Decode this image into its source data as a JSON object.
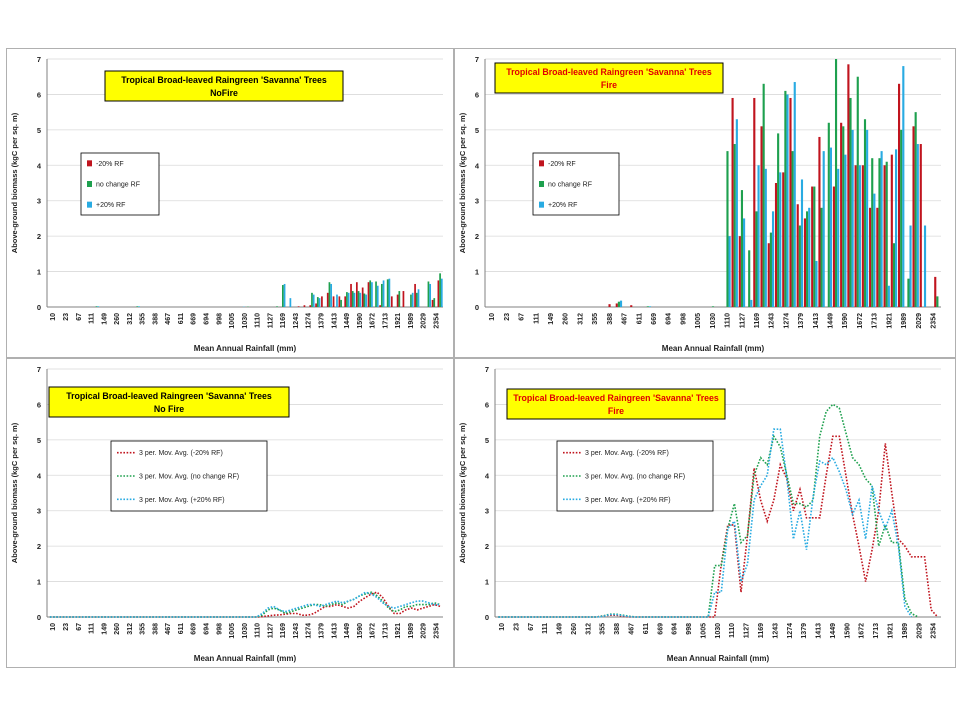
{
  "colors": {
    "low": "#c0141e",
    "mid": "#1ea04e",
    "high": "#29abe2",
    "title_box": "#ffff00",
    "fire_title": "#e00000",
    "axis": "#808080",
    "grid": "#d9d9d9"
  },
  "chart_data": [
    {
      "type": "bar",
      "title_line1": "Tropical Broad-leaved Raingreen 'Savanna' Trees",
      "title_line2": "NoFire",
      "title_color": "black",
      "xlabel": "Mean Annual Rainfall (mm)",
      "ylabel": "Above-ground biomass (kgC per sq. m)",
      "ylim": [
        0,
        7
      ],
      "yticks": [
        "0",
        "1",
        "2",
        "3",
        "4",
        "5",
        "6",
        "7"
      ],
      "tick_labels": [
        "10",
        "23",
        "67",
        "111",
        "149",
        "260",
        "312",
        "355",
        "388",
        "467",
        "611",
        "669",
        "694",
        "998",
        "1005",
        "1030",
        "1110",
        "1127",
        "1169",
        "1243",
        "1274",
        "1379",
        "1413",
        "1449",
        "1590",
        "1672",
        "1713",
        "1921",
        "1989",
        "2029",
        "2354"
      ],
      "legend": [
        "-20% RF",
        "no change RF",
        "+20% RF"
      ],
      "series": [
        {
          "name": "-20% RF",
          "values": [
            0,
            0,
            0,
            0,
            0,
            0,
            0,
            0,
            0,
            0,
            0,
            0,
            0,
            0,
            0,
            0,
            0,
            0,
            0,
            0,
            0,
            0,
            0,
            0,
            0,
            0,
            0,
            0,
            0,
            0,
            0,
            0,
            0,
            0,
            0,
            0,
            0,
            0,
            0,
            0,
            0,
            0,
            0,
            0.02,
            0.05,
            0.05,
            0.1,
            0.3,
            0.4,
            0.3,
            0.3,
            0.3,
            0.65,
            0.7,
            0.55,
            0.7,
            0,
            0.05,
            0,
            0.3,
            0.35,
            0.45,
            0,
            0.65,
            0,
            0,
            0.2,
            0.75
          ]
        },
        {
          "name": "no change RF",
          "values": [
            0,
            0,
            0,
            0,
            0,
            0,
            0,
            0,
            0.02,
            0,
            0,
            0,
            0,
            0,
            0,
            0.02,
            0,
            0,
            0,
            0,
            0,
            0,
            0,
            0,
            0,
            0,
            0,
            0,
            0,
            0,
            0,
            0,
            0,
            0,
            0.01,
            0,
            0,
            0,
            0,
            0.02,
            0.62,
            0,
            0,
            0,
            0,
            0.4,
            0.28,
            0,
            0.7,
            0,
            0.2,
            0.42,
            0.45,
            0.45,
            0.38,
            0.75,
            0.72,
            0.65,
            0.78,
            0,
            0.45,
            0,
            0.35,
            0.4,
            0,
            0.72,
            0.25,
            0.95
          ]
        },
        {
          "name": "+20% RF",
          "values": [
            0,
            0,
            0,
            0,
            0,
            0,
            0,
            0,
            0.02,
            0,
            0,
            0,
            0,
            0,
            0,
            0.02,
            0,
            0,
            0,
            0,
            0,
            0,
            0,
            0,
            0,
            0,
            0,
            0,
            0,
            0,
            0,
            0,
            0,
            0.01,
            0,
            0,
            0,
            0,
            0,
            0,
            0.65,
            0.25,
            0,
            0,
            0,
            0.35,
            0.25,
            0,
            0.65,
            0.35,
            0,
            0.4,
            0.4,
            0.4,
            0.35,
            0.7,
            0.6,
            0.75,
            0.8,
            0,
            0,
            0,
            0.4,
            0.5,
            0,
            0.65,
            0,
            0.8
          ]
        }
      ]
    },
    {
      "type": "bar",
      "title_line1": "Tropical Broad-leaved Raingreen 'Savanna' Trees",
      "title_line2": "Fire",
      "title_color": "red",
      "xlabel": "Mean Annual Rainfall (mm)",
      "ylabel": "Above-ground biomass (kgC per sq. m)",
      "ylim": [
        0,
        7
      ],
      "yticks": [
        "0",
        "1",
        "2",
        "3",
        "4",
        "5",
        "6",
        "7"
      ],
      "tick_labels": [
        "10",
        "23",
        "67",
        "111",
        "149",
        "260",
        "312",
        "355",
        "388",
        "467",
        "611",
        "669",
        "694",
        "998",
        "1005",
        "1030",
        "1110",
        "1127",
        "1169",
        "1243",
        "1274",
        "1379",
        "1413",
        "1449",
        "1590",
        "1672",
        "1713",
        "1921",
        "1989",
        "2029",
        "2354"
      ],
      "legend": [
        "-20% RF",
        "no change RF",
        "+20% RF"
      ],
      "series": [
        {
          "name": "-20% RF",
          "values": [
            0,
            0,
            0,
            0,
            0,
            0,
            0,
            0,
            0,
            0,
            0,
            0,
            0,
            0,
            0,
            0,
            0,
            0.08,
            0.1,
            0,
            0.05,
            0,
            0,
            0,
            0,
            0,
            0,
            0,
            0,
            0,
            0,
            0,
            0,
            0,
            5.9,
            2.0,
            0,
            5.9,
            5.1,
            1.8,
            3.5,
            3.8,
            5.9,
            2.9,
            2.5,
            3.4,
            4.8,
            0,
            3.4,
            5.2,
            6.85,
            4.0,
            4.0,
            2.8,
            2.8,
            4.0,
            4.3,
            6.3,
            0,
            5.1,
            4.6,
            0,
            0.85
          ]
        },
        {
          "name": "no change RF",
          "values": [
            0,
            0,
            0,
            0,
            0,
            0,
            0,
            0,
            0,
            0,
            0,
            0,
            0,
            0,
            0,
            0,
            0,
            0,
            0.15,
            0,
            0,
            0,
            0.02,
            0,
            0,
            0,
            0,
            0,
            0,
            0,
            0,
            0.02,
            0,
            4.4,
            4.6,
            3.3,
            1.6,
            2.7,
            6.3,
            2.1,
            4.9,
            6.1,
            4.4,
            2.3,
            2.7,
            3.4,
            2.8,
            5.2,
            7.0,
            5.1,
            5.9,
            6.5,
            5.3,
            4.2,
            4.2,
            4.1,
            1.8,
            5.0,
            0.8,
            5.5,
            0,
            0,
            0.3
          ]
        },
        {
          "name": "+20% RF",
          "values": [
            0,
            0,
            0,
            0,
            0,
            0,
            0,
            0,
            0,
            0,
            0,
            0,
            0,
            0,
            0,
            0,
            0,
            0,
            0.18,
            0,
            0,
            0,
            0.02,
            0,
            0,
            0,
            0,
            0,
            0,
            0,
            0,
            0,
            0,
            2.0,
            5.3,
            2.5,
            0.2,
            4.0,
            3.9,
            2.7,
            3.8,
            6.0,
            6.35,
            3.6,
            2.8,
            1.3,
            4.4,
            4.5,
            3.9,
            4.3,
            5.0,
            4.0,
            5.0,
            3.2,
            4.4,
            0.6,
            4.45,
            6.8,
            2.3,
            4.6,
            2.3,
            0,
            0
          ]
        }
      ]
    },
    {
      "type": "line",
      "title_line1": "Tropical Broad-leaved Raingreen 'Savanna' Trees",
      "title_line2": "No Fire",
      "title_color": "black",
      "xlabel": "Mean Annual Rainfall (mm)",
      "ylabel": "Above-ground biomass (kgC per sq. m)",
      "ylim": [
        0,
        7
      ],
      "yticks": [
        "0",
        "1",
        "2",
        "3",
        "4",
        "5",
        "6",
        "7"
      ],
      "tick_labels": [
        "10",
        "23",
        "67",
        "111",
        "149",
        "260",
        "312",
        "355",
        "388",
        "467",
        "611",
        "669",
        "694",
        "998",
        "1005",
        "1030",
        "1110",
        "1127",
        "1169",
        "1243",
        "1274",
        "1379",
        "1413",
        "1449",
        "1590",
        "1672",
        "1713",
        "1921",
        "1989",
        "2029",
        "2354"
      ],
      "legend": [
        "3 per. Mov. Avg. (-20% RF)",
        "3 per. Mov. Avg. (no change RF)",
        "3 per. Mov. Avg. (+20% RF)"
      ],
      "series": [
        {
          "name": "3 per. Mov. Avg. (-20% RF)",
          "values": [
            0,
            0,
            0,
            0,
            0,
            0,
            0,
            0,
            0,
            0,
            0,
            0,
            0,
            0,
            0,
            0,
            0,
            0,
            0,
            0,
            0,
            0,
            0,
            0,
            0,
            0,
            0,
            0,
            0,
            0,
            0,
            0,
            0,
            0,
            0,
            0,
            0,
            0.01,
            0.03,
            0.05,
            0.06,
            0.08,
            0.1,
            0.1,
            0.05,
            0.05,
            0.1,
            0.2,
            0.3,
            0.3,
            0.35,
            0.3,
            0.25,
            0.3,
            0.45,
            0.55,
            0.65,
            0.7,
            0.55,
            0.3,
            0.1,
            0.1,
            0.2,
            0.25,
            0.2,
            0.25,
            0.3,
            0.35,
            0.3
          ]
        },
        {
          "name": "3 per. Mov. Avg. (no change RF)",
          "values": [
            0,
            0,
            0,
            0,
            0,
            0,
            0,
            0,
            0,
            0,
            0,
            0,
            0,
            0,
            0,
            0,
            0,
            0,
            0,
            0,
            0,
            0,
            0,
            0,
            0,
            0,
            0,
            0,
            0,
            0,
            0,
            0,
            0,
            0,
            0,
            0,
            0,
            0.05,
            0.2,
            0.25,
            0.2,
            0.1,
            0.15,
            0.2,
            0.25,
            0.3,
            0.35,
            0.35,
            0.3,
            0.35,
            0.4,
            0.35,
            0.45,
            0.5,
            0.6,
            0.65,
            0.7,
            0.6,
            0.45,
            0.25,
            0.15,
            0.2,
            0.3,
            0.3,
            0.35,
            0.35,
            0.35,
            0.4,
            0.35
          ]
        },
        {
          "name": "3 per. Mov. Avg. (+20% RF)",
          "values": [
            0,
            0,
            0,
            0,
            0,
            0,
            0,
            0,
            0,
            0,
            0,
            0,
            0,
            0,
            0,
            0,
            0,
            0,
            0,
            0,
            0,
            0,
            0,
            0,
            0,
            0,
            0,
            0,
            0,
            0,
            0,
            0,
            0,
            0,
            0,
            0,
            0,
            0.1,
            0.25,
            0.3,
            0.2,
            0.15,
            0.2,
            0.25,
            0.3,
            0.35,
            0.35,
            0.3,
            0.35,
            0.4,
            0.45,
            0.4,
            0.45,
            0.5,
            0.6,
            0.7,
            0.65,
            0.55,
            0.4,
            0.3,
            0.25,
            0.3,
            0.35,
            0.4,
            0.45,
            0.45,
            0.4,
            0.35,
            0.35
          ]
        }
      ]
    },
    {
      "type": "line",
      "title_line1": "Tropical Broad-leaved Raingreen 'Savanna' Trees",
      "title_line2": "Fire",
      "title_color": "red",
      "xlabel": "Mean Annual Rainfall (mm)",
      "ylabel": "Above-ground biomass (kgC per sq. m)",
      "ylim": [
        0,
        7
      ],
      "yticks": [
        "0",
        "1",
        "2",
        "3",
        "4",
        "5",
        "6",
        "7"
      ],
      "tick_labels": [
        "10",
        "23",
        "67",
        "111",
        "149",
        "260",
        "312",
        "355",
        "388",
        "467",
        "611",
        "669",
        "694",
        "998",
        "1005",
        "1030",
        "1110",
        "1127",
        "1169",
        "1243",
        "1274",
        "1379",
        "1413",
        "1449",
        "1590",
        "1672",
        "1713",
        "1921",
        "1989",
        "2029",
        "2354"
      ],
      "legend": [
        "3 per. Mov. Avg. (-20% RF)",
        "3 per. Mov. Avg. (no change RF)",
        "3 per. Mov. Avg. (+20% RF)"
      ],
      "series": [
        {
          "name": "3 per. Mov. Avg. (-20% RF)",
          "values": [
            0,
            0,
            0,
            0,
            0,
            0,
            0,
            0,
            0,
            0,
            0,
            0,
            0,
            0,
            0,
            0,
            0.03,
            0.05,
            0.05,
            0.02,
            0,
            0,
            0,
            0,
            0,
            0,
            0,
            0,
            0,
            0,
            0,
            0,
            0,
            0,
            1.5,
            2.6,
            2.6,
            0.7,
            2.3,
            4.2,
            3.3,
            2.7,
            3.3,
            4.3,
            3.9,
            3.0,
            3.6,
            2.8,
            2.8,
            2.8,
            4.0,
            5.1,
            5.1,
            4.0,
            2.9,
            2.0,
            1.0,
            1.9,
            3.0,
            4.9,
            3.5,
            2.2,
            2.0,
            1.7,
            1.7,
            1.7,
            0.2,
            0
          ]
        },
        {
          "name": "3 per. Mov. Avg. (no change RF)",
          "values": [
            0,
            0,
            0,
            0,
            0,
            0,
            0,
            0,
            0,
            0,
            0,
            0,
            0,
            0,
            0,
            0,
            0.03,
            0.08,
            0.08,
            0.05,
            0.02,
            0,
            0,
            0,
            0,
            0,
            0,
            0,
            0,
            0,
            0,
            0,
            0,
            1.45,
            1.45,
            2.5,
            3.2,
            2.1,
            2.3,
            4.0,
            4.5,
            4.3,
            5.1,
            4.8,
            4.0,
            3.2,
            3.2,
            3.1,
            3.3,
            5.1,
            5.8,
            6.0,
            5.9,
            5.2,
            4.5,
            4.3,
            3.9,
            3.7,
            2.0,
            2.6,
            2.1,
            2.1,
            0.5,
            0.1,
            0
          ]
        },
        {
          "name": "3 per. Mov. Avg. (+20% RF)",
          "values": [
            0,
            0,
            0,
            0,
            0,
            0,
            0,
            0,
            0,
            0,
            0,
            0,
            0,
            0,
            0,
            0,
            0.02,
            0.07,
            0.07,
            0.04,
            0.01,
            0,
            0,
            0,
            0,
            0,
            0,
            0,
            0,
            0,
            0,
            0,
            0,
            0.7,
            0.7,
            2.5,
            2.7,
            1.0,
            1.5,
            3.3,
            3.7,
            4.0,
            5.3,
            5.3,
            3.9,
            2.2,
            3.0,
            1.9,
            3.4,
            4.4,
            4.3,
            4.5,
            4.1,
            3.6,
            2.9,
            3.3,
            2.2,
            3.7,
            3.0,
            2.5,
            3.0,
            2.0,
            0.3,
            0
          ]
        }
      ]
    }
  ]
}
